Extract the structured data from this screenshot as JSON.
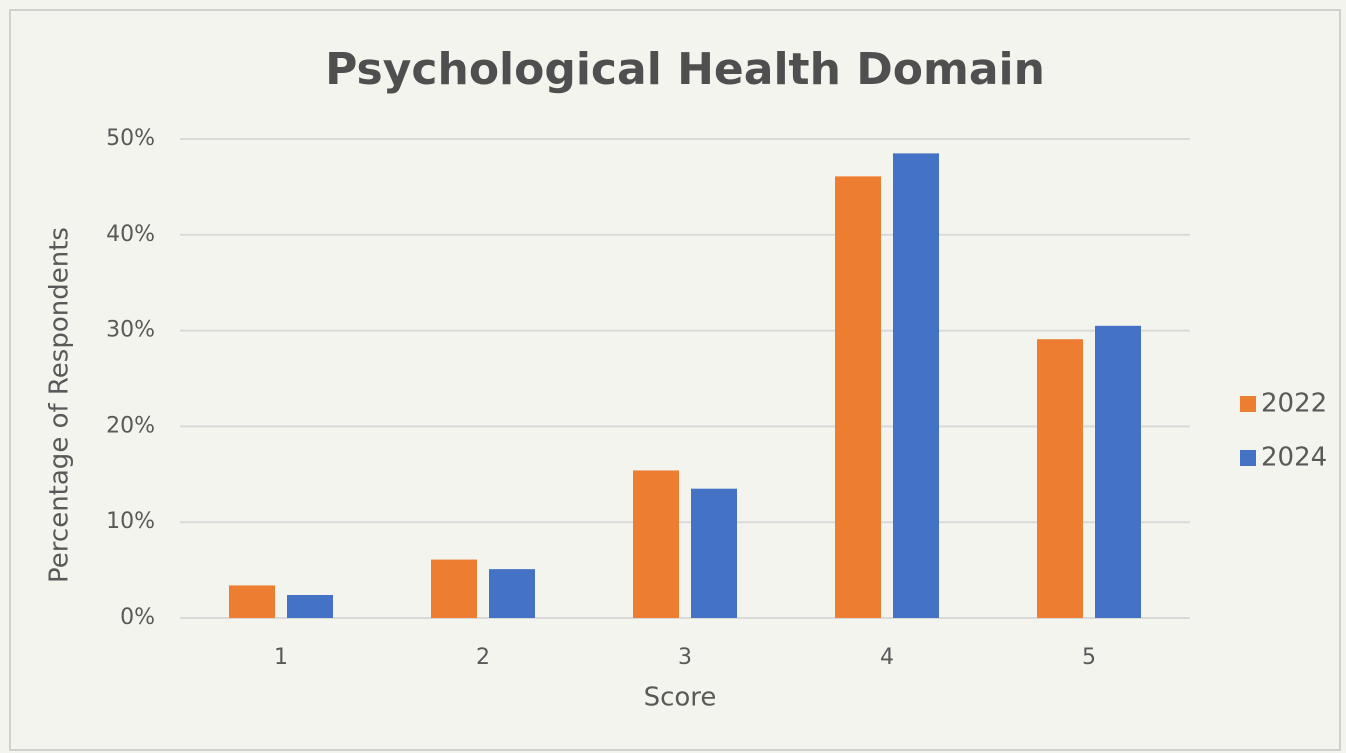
{
  "chart_data": {
    "type": "bar",
    "title": "Psychological Health Domain",
    "x_label": "Score",
    "y_label": "Percentage of Respondents",
    "categories": [
      "1",
      "2",
      "3",
      "4",
      "5"
    ],
    "series": [
      {
        "name": "2022",
        "color": "#ed7d31",
        "values": [
          3.4,
          6.1,
          15.4,
          46.1,
          29.1
        ]
      },
      {
        "name": "2024",
        "color": "#4472c4",
        "values": [
          2.4,
          5.1,
          13.5,
          48.5,
          30.5
        ]
      }
    ],
    "ylim": [
      0,
      50
    ],
    "yticks": [
      {
        "value": 0,
        "label": "0%"
      },
      {
        "value": 10,
        "label": "10%"
      },
      {
        "value": 20,
        "label": "20%"
      },
      {
        "value": 30,
        "label": "30%"
      },
      {
        "value": 40,
        "label": "40%"
      },
      {
        "value": 50,
        "label": "50%"
      }
    ],
    "grid": true,
    "legend": "right"
  }
}
